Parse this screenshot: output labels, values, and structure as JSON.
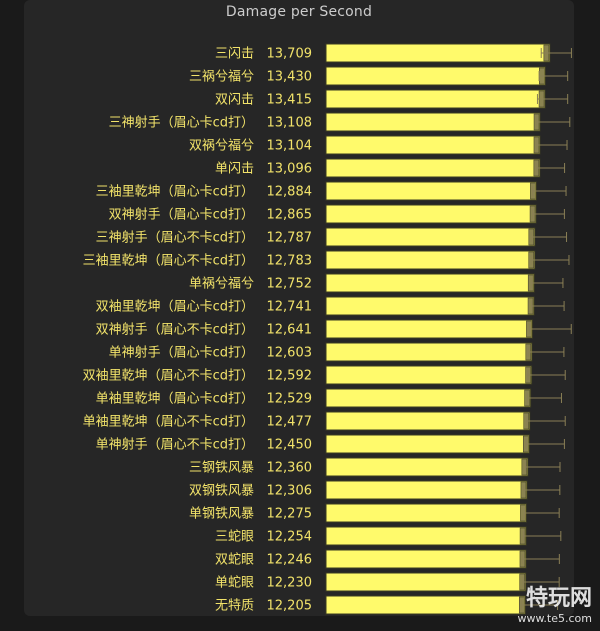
{
  "chart_data": {
    "type": "bar",
    "orientation": "horizontal",
    "title": "Damage per Second",
    "categories": [
      "三闪击",
      "三祸兮福兮",
      "双闪击",
      "三神射手（眉心卡cd打）",
      "双祸兮福兮",
      "单闪击",
      "三袖里乾坤（眉心卡cd打）",
      "双神射手（眉心卡cd打）",
      "三神射手（眉心不卡cd打）",
      "三袖里乾坤（眉心不卡cd打）",
      "单祸兮福兮",
      "双袖里乾坤（眉心卡cd打）",
      "双神射手（眉心不卡cd打）",
      "单神射手（眉心卡cd打）",
      "双袖里乾坤（眉心不卡cd打）",
      "单袖里乾坤（眉心卡cd打）",
      "单袖里乾坤（眉心不卡cd打）",
      "单神射手（眉心不卡cd打）",
      "三钢铁风暴",
      "双钢铁风暴",
      "单钢铁风暴",
      "三蛇眼",
      "双蛇眼",
      "单蛇眼",
      "无特质"
    ],
    "value_labels": [
      "13,709",
      "13,430",
      "13,415",
      "13,108",
      "13,104",
      "13,096",
      "12,884",
      "12,865",
      "12,787",
      "12,783",
      "12,752",
      "12,741",
      "12,641",
      "12,603",
      "12,592",
      "12,529",
      "12,477",
      "12,450",
      "12,360",
      "12,306",
      "12,275",
      "12,254",
      "12,246",
      "12,230",
      "12,205"
    ],
    "values": [
      13709,
      13430,
      13415,
      13108,
      13104,
      13096,
      12884,
      12865,
      12787,
      12783,
      12752,
      12741,
      12641,
      12603,
      12592,
      12529,
      12477,
      12450,
      12360,
      12306,
      12275,
      12254,
      12246,
      12230,
      12205
    ],
    "error_low": [
      13180,
      13050,
      12950,
      12920,
      12910,
      12900,
      12650,
      12640,
      12570,
      12560,
      12560,
      12580,
      12480,
      12380,
      12360,
      12340,
      12290,
      12240,
      12220,
      12120,
      12160,
      12090,
      12030,
      12060,
      11950
    ],
    "error_high": [
      15030,
      14800,
      14800,
      14930,
      14760,
      14610,
      14700,
      14600,
      14730,
      14880,
      14510,
      14580,
      15020,
      14570,
      14650,
      14420,
      14650,
      14600,
      14330,
      14320,
      14280,
      14380,
      14290,
      14280,
      14180
    ],
    "xlim": [
      0,
      15800
    ],
    "bar_color": "#fffa6b",
    "bar_edge_color": "#3a3a22",
    "error_color": "#8a7f55",
    "label_color": "#f2e36a",
    "legend": "none",
    "grid": false
  },
  "watermark": {
    "logo": "特玩网",
    "url": "www.te5.com"
  }
}
